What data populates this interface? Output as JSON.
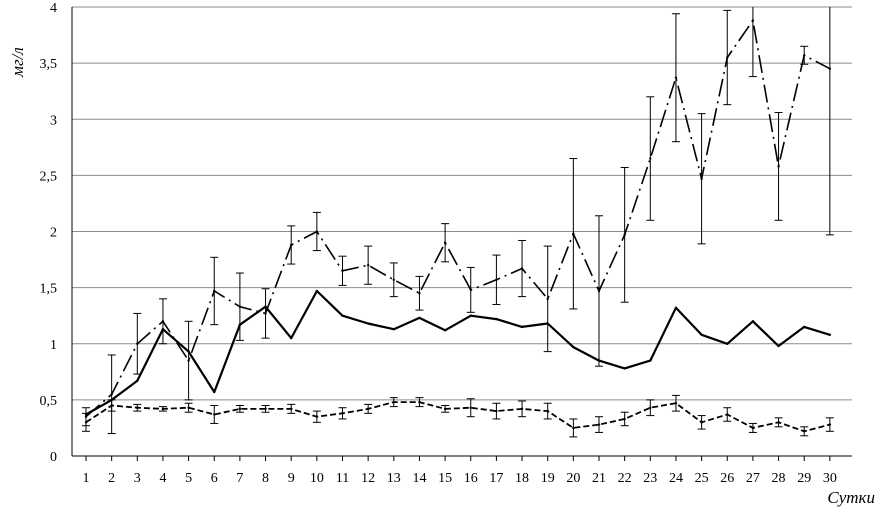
{
  "chart_data": {
    "type": "line",
    "title": "",
    "xlabel": "Сутки",
    "ylabel": "мг/л",
    "x": [
      1,
      2,
      3,
      4,
      5,
      6,
      7,
      8,
      9,
      10,
      11,
      12,
      13,
      14,
      15,
      16,
      17,
      18,
      19,
      20,
      21,
      22,
      23,
      24,
      25,
      26,
      27,
      28,
      29,
      30
    ],
    "ylim": [
      0,
      4
    ],
    "yticks": [
      "0",
      "0,5",
      "1",
      "1,5",
      "2",
      "2,5",
      "3",
      "3,5",
      "4"
    ],
    "grid": "horizontal",
    "legend": "none",
    "series": [
      {
        "style": "dash-dot",
        "values": [
          0.35,
          0.55,
          1.0,
          1.2,
          0.85,
          1.47,
          1.33,
          1.27,
          1.88,
          2.0,
          1.65,
          1.7,
          1.57,
          1.45,
          1.9,
          1.48,
          1.57,
          1.67,
          1.4,
          1.98,
          1.47,
          1.97,
          2.65,
          3.37,
          2.47,
          3.55,
          3.88,
          2.58,
          3.57,
          3.45
        ],
        "error": [
          0.08,
          0.35,
          0.27,
          0.2,
          0.35,
          0.3,
          0.3,
          0.22,
          0.17,
          0.17,
          0.13,
          0.17,
          0.15,
          0.15,
          0.17,
          0.2,
          0.22,
          0.25,
          0.47,
          0.67,
          0.67,
          0.6,
          0.55,
          0.57,
          0.58,
          0.42,
          0.5,
          0.48,
          0.08,
          1.48
        ]
      },
      {
        "style": "solid",
        "values": [
          0.37,
          0.5,
          0.67,
          1.13,
          0.93,
          0.57,
          1.17,
          1.33,
          1.05,
          1.47,
          1.25,
          1.18,
          1.13,
          1.23,
          1.12,
          1.25,
          1.22,
          1.15,
          1.18,
          0.97,
          0.85,
          0.78,
          0.85,
          1.32,
          1.08,
          1.0,
          1.2,
          0.98,
          1.15,
          1.08
        ]
      },
      {
        "style": "dashed",
        "values": [
          0.3,
          0.45,
          0.43,
          0.42,
          0.43,
          0.37,
          0.42,
          0.42,
          0.42,
          0.35,
          0.38,
          0.42,
          0.48,
          0.48,
          0.42,
          0.43,
          0.4,
          0.42,
          0.4,
          0.25,
          0.28,
          0.33,
          0.43,
          0.47,
          0.3,
          0.37,
          0.25,
          0.3,
          0.22,
          0.28
        ],
        "error": [
          0.08,
          0.05,
          0.03,
          0.02,
          0.04,
          0.08,
          0.03,
          0.03,
          0.04,
          0.05,
          0.05,
          0.04,
          0.04,
          0.04,
          0.03,
          0.08,
          0.07,
          0.07,
          0.07,
          0.08,
          0.07,
          0.06,
          0.07,
          0.07,
          0.06,
          0.06,
          0.04,
          0.04,
          0.04,
          0.06
        ]
      }
    ]
  }
}
